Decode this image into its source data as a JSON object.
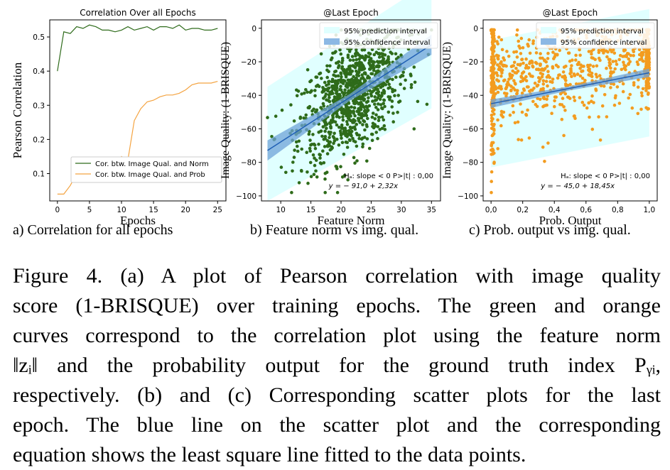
{
  "chart_data": [
    {
      "type": "line",
      "title": "Correlation Over all Epochs",
      "xlabel": "Epochs",
      "ylabel": "Pearson Correlation",
      "xlim": [
        -1.2,
        26.3
      ],
      "ylim": [
        0.02,
        0.55
      ],
      "xticks": [
        0,
        5,
        10,
        15,
        20,
        25
      ],
      "yticks": [
        0.1,
        0.2,
        0.3,
        0.4,
        0.5
      ],
      "ytick_labels": [
        "0.1",
        "0.2",
        "0.3",
        "0.4",
        "0.5"
      ],
      "legend_position": "lower-right",
      "series": [
        {
          "name": "Cor. btw. Image Qual. and Norm",
          "color": "#2e6b1a",
          "x": [
            0,
            1,
            2,
            3,
            4,
            5,
            6,
            7,
            8,
            9,
            10,
            11,
            12,
            13,
            14,
            15,
            16,
            17,
            18,
            19,
            20,
            21,
            22,
            23,
            24,
            25
          ],
          "values": [
            0.4,
            0.515,
            0.51,
            0.53,
            0.525,
            0.535,
            0.53,
            0.52,
            0.52,
            0.515,
            0.52,
            0.53,
            0.52,
            0.525,
            0.53,
            0.52,
            0.53,
            0.53,
            0.525,
            0.535,
            0.52,
            0.525,
            0.525,
            0.52,
            0.52,
            0.525
          ]
        },
        {
          "name": "Cor. btw. Image Qual. and Prob",
          "color": "#f4a340",
          "x": [
            0,
            1,
            2,
            3,
            4,
            5,
            6,
            7,
            8,
            9,
            10,
            11,
            12,
            13,
            14,
            15,
            16,
            17,
            18,
            19,
            20,
            21,
            22,
            23,
            24,
            25
          ],
          "values": [
            0.04,
            0.04,
            0.065,
            0.1,
            0.1,
            0.105,
            0.135,
            0.14,
            0.145,
            0.11,
            0.15,
            0.14,
            0.255,
            0.29,
            0.31,
            0.315,
            0.325,
            0.33,
            0.33,
            0.335,
            0.345,
            0.36,
            0.365,
            0.365,
            0.365,
            0.37
          ]
        }
      ]
    },
    {
      "type": "scatter",
      "title": "@Last Epoch",
      "xlabel": "Feature Norm",
      "ylabel": "Image Quality: (1-BRISQUE)",
      "xlim": [
        6.8,
        36.5
      ],
      "ylim": [
        -103,
        5
      ],
      "xticks": [
        10,
        15,
        20,
        25,
        30,
        35
      ],
      "yticks": [
        -100,
        -80,
        -60,
        -40,
        -20,
        0
      ],
      "ytick_labels": [
        "−100",
        "−80",
        "−60",
        "−40",
        "−20",
        "0"
      ],
      "point_color": "#2e6b1a",
      "point_count": 1000,
      "fit": {
        "intercept": -91.0,
        "slope": 2.32,
        "x_range": [
          7.8,
          35
        ]
      },
      "legend": [
        "95% prediction interval",
        "95% confidence interval"
      ],
      "annotations": [
        "Hₐ: slope < 0    P>|t| : 0,00",
        "y = − 91,0 + 2,32x"
      ]
    },
    {
      "type": "scatter",
      "title": "@Last Epoch",
      "xlabel": "Prob. Output",
      "ylabel": "Image Quality: (1-BRISQUE)",
      "xlim": [
        -0.05,
        1.05
      ],
      "ylim": [
        -103,
        5
      ],
      "xticks": [
        0.0,
        0.2,
        0.4,
        0.6,
        0.8,
        1.0
      ],
      "xtick_labels": [
        "0,0",
        "0,2",
        "0,4",
        "0,6",
        "0,8",
        "1,0"
      ],
      "yticks": [
        -100,
        -80,
        -60,
        -40,
        -20,
        0
      ],
      "ytick_labels": [
        "−100",
        "−80",
        "−60",
        "−40",
        "−20",
        "0"
      ],
      "point_color": "#f39c1f",
      "point_count": 1000,
      "fit": {
        "intercept": -45.0,
        "slope": 18.45,
        "x_range": [
          0.0,
          1.0
        ]
      },
      "legend": [
        "95% prediction interval",
        "95% confidence interval"
      ],
      "annotations": [
        "Hₐ: slope < 0    P>|t| : 0,00",
        "y = − 45,0 + 18,45x"
      ]
    }
  ],
  "subcaptions": {
    "a": "a) Correlation for all epochs",
    "b": "b) Feature norm vs img. qual.",
    "c": "c) Prob. output vs img. qual."
  },
  "caption_lines": [
    "Figure 4.  (a) A plot of Pearson correlation with image quality",
    "score (1-BRISQUE) over training epochs. The green and orange",
    "curves correspond to the correlation plot using the feature norm",
    "‖zᵢ‖ and the probability output for the ground truth index Pᵧᵢ,",
    "respectively.  (b) and (c) Corresponding scatter plots for the last",
    "epoch.  The blue line on the scatter plot and the corresponding",
    "equation shows the least square line fitted to the data points."
  ]
}
